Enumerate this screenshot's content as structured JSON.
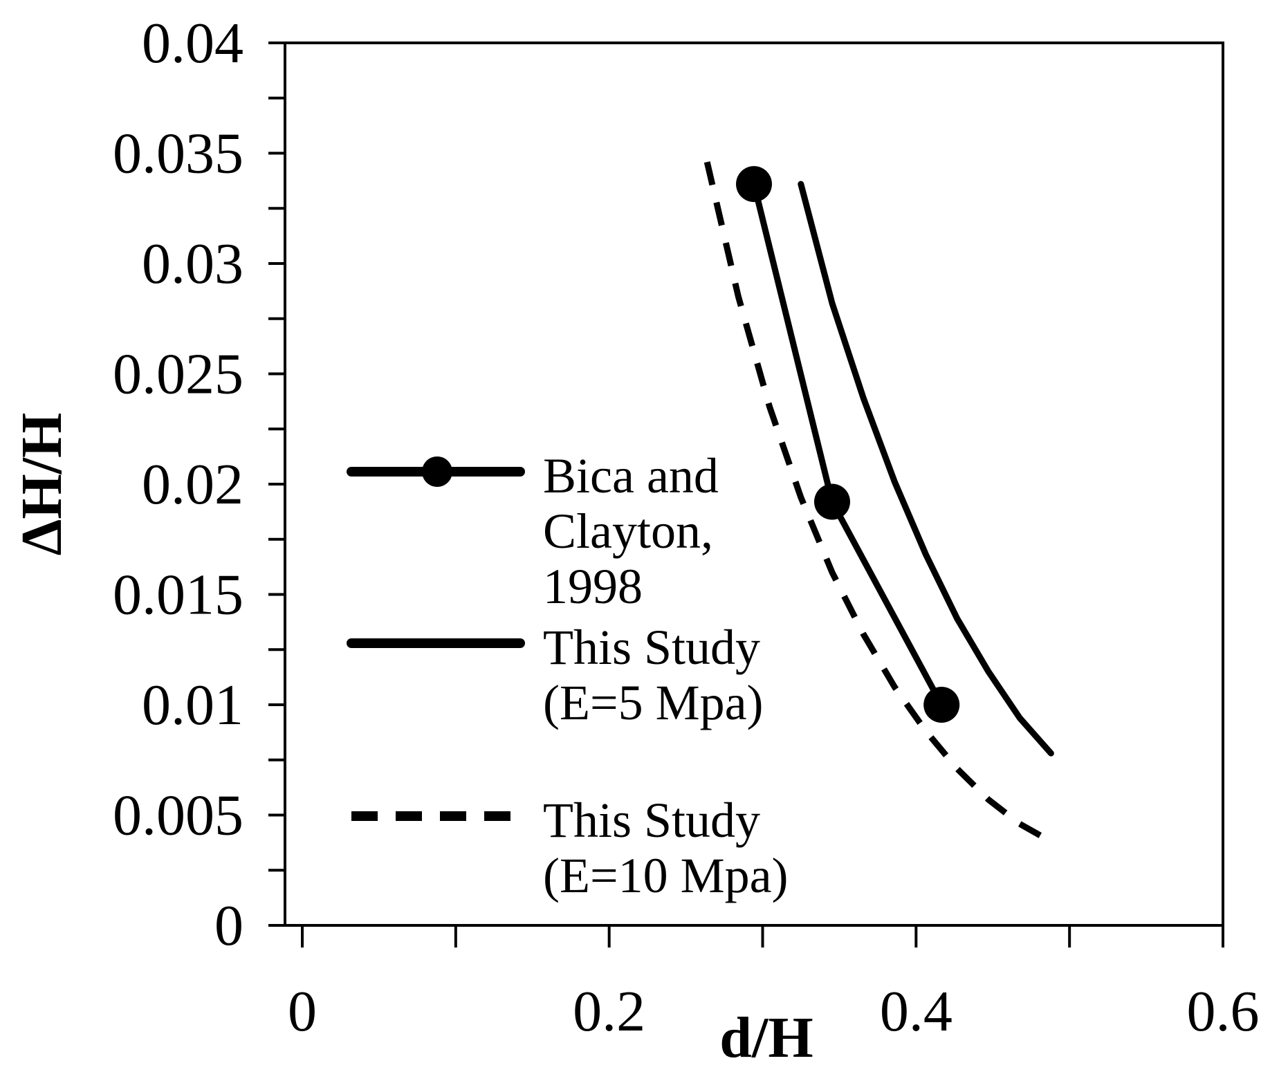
{
  "chart_data": {
    "type": "line",
    "title": "",
    "xlabel": "d/H",
    "ylabel": "ΔH/H",
    "xlim": [
      0,
      0.6
    ],
    "ylim": [
      0,
      0.04
    ],
    "x_major_ticks": [
      0,
      0.2,
      0.4,
      0.6
    ],
    "x_tick_labels": [
      "0",
      "0.2",
      "0.4",
      "0.6"
    ],
    "x_minor_step": 0.1,
    "y_major_ticks": [
      0,
      0.005,
      0.01,
      0.015,
      0.02,
      0.025,
      0.03,
      0.035,
      0.04
    ],
    "y_tick_labels": [
      "0",
      "0.005",
      "0.01",
      "0.015",
      "0.02",
      "0.025",
      "0.03",
      "0.035",
      "0.04"
    ],
    "y_minor_step": 0.0025,
    "grid": false,
    "legend_position": "center-right",
    "series": [
      {
        "name": "Bica and Clayton, 1998",
        "legend_lines": [
          "Bica and",
          "Clayton,",
          "1998"
        ],
        "style": "solid-markers",
        "x": [
          0.3,
          0.35,
          0.42
        ],
        "y": [
          0.0336,
          0.0192,
          0.01
        ]
      },
      {
        "name": "This Study (E=5 Mpa)",
        "legend_lines": [
          "This Study",
          "(E=5 Mpa)"
        ],
        "style": "solid",
        "x": [
          0.33,
          0.35,
          0.37,
          0.39,
          0.41,
          0.43,
          0.45,
          0.47,
          0.49
        ],
        "y": [
          0.0336,
          0.0282,
          0.0239,
          0.0201,
          0.0168,
          0.0139,
          0.0115,
          0.0094,
          0.0078
        ]
      },
      {
        "name": "This Study (E=10 Mpa)",
        "legend_lines": [
          "This Study",
          "(E=10 Mpa)"
        ],
        "style": "dashed",
        "x": [
          0.27,
          0.29,
          0.31,
          0.33,
          0.35,
          0.37,
          0.39,
          0.41,
          0.43,
          0.45,
          0.47,
          0.49
        ],
        "y": [
          0.0346,
          0.0285,
          0.0235,
          0.0194,
          0.016,
          0.0132,
          0.0108,
          0.0088,
          0.0071,
          0.0057,
          0.0046,
          0.0038
        ]
      }
    ]
  }
}
